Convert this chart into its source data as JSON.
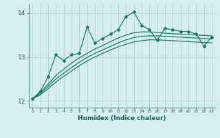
{
  "xlabel": "Humidex (Indice chaleur)",
  "bg_color": "#d6eeee",
  "grid_color": "#b8d8d8",
  "line_color": "#1a7a6e",
  "x_values": [
    0,
    1,
    2,
    3,
    4,
    5,
    6,
    7,
    8,
    9,
    10,
    11,
    12,
    13,
    14,
    15,
    16,
    17,
    18,
    19,
    20,
    21,
    22,
    23
  ],
  "series_main": [
    12.05,
    12.22,
    12.55,
    13.05,
    12.92,
    13.05,
    13.08,
    13.68,
    13.32,
    13.42,
    13.52,
    13.62,
    13.92,
    14.02,
    13.72,
    13.62,
    13.38,
    13.65,
    13.62,
    13.58,
    13.58,
    13.52,
    13.25,
    13.45
  ],
  "series_smooth1": [
    12.05,
    12.2,
    12.38,
    12.58,
    12.72,
    12.86,
    12.98,
    13.08,
    13.18,
    13.26,
    13.35,
    13.43,
    13.5,
    13.55,
    13.57,
    13.57,
    13.56,
    13.54,
    13.53,
    13.52,
    13.51,
    13.5,
    13.49,
    13.48
  ],
  "series_smooth2": [
    12.05,
    12.17,
    12.33,
    12.5,
    12.63,
    12.76,
    12.88,
    12.99,
    13.08,
    13.16,
    13.24,
    13.32,
    13.39,
    13.44,
    13.47,
    13.48,
    13.48,
    13.47,
    13.46,
    13.45,
    13.44,
    13.43,
    13.42,
    13.41
  ],
  "series_smooth3": [
    12.05,
    12.14,
    12.28,
    12.43,
    12.56,
    12.68,
    12.8,
    12.91,
    13.0,
    13.08,
    13.16,
    13.23,
    13.29,
    13.34,
    13.37,
    13.39,
    13.39,
    13.38,
    13.37,
    13.36,
    13.35,
    13.34,
    13.33,
    13.32
  ],
  "ylim": [
    11.85,
    14.2
  ],
  "yticks": [
    12,
    13,
    14
  ],
  "xlim": [
    -0.5,
    23.5
  ]
}
